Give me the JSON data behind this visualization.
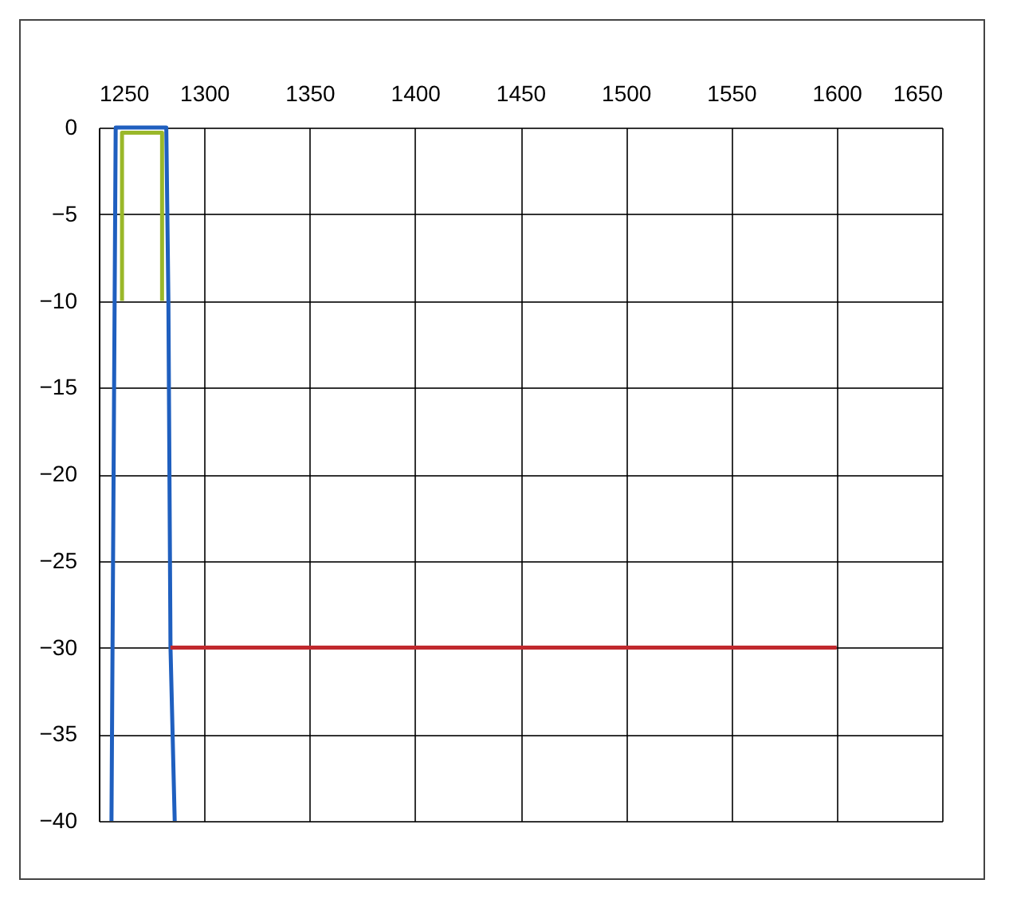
{
  "chart_data": {
    "type": "line",
    "series": [
      {
        "color": "#1f5fbf",
        "x": [
          1256,
          1257,
          1258,
          1282,
          1283,
          1284,
          1286
        ],
        "values": [
          -40,
          -20,
          0,
          0,
          -10,
          -30,
          -40
        ]
      },
      {
        "color": "#9ab82a",
        "x": [
          1261,
          1261,
          1280,
          1280
        ],
        "values": [
          -10,
          -0.3,
          -0.3,
          -10
        ]
      },
      {
        "color": "#c0282d",
        "x": [
          1284,
          1600
        ],
        "values": [
          -30,
          -30
        ]
      }
    ],
    "xlim": [
      1250,
      1650
    ],
    "xticks": [
      1250,
      1300,
      1350,
      1400,
      1450,
      1500,
      1550,
      1600,
      1650
    ],
    "ylim": [
      -40,
      0
    ],
    "yticks": [
      0,
      -5,
      -10,
      -15,
      -20,
      -25,
      -30,
      -35,
      -40
    ],
    "grid": true,
    "legend": false,
    "line_style": "solid",
    "marker": "none"
  }
}
